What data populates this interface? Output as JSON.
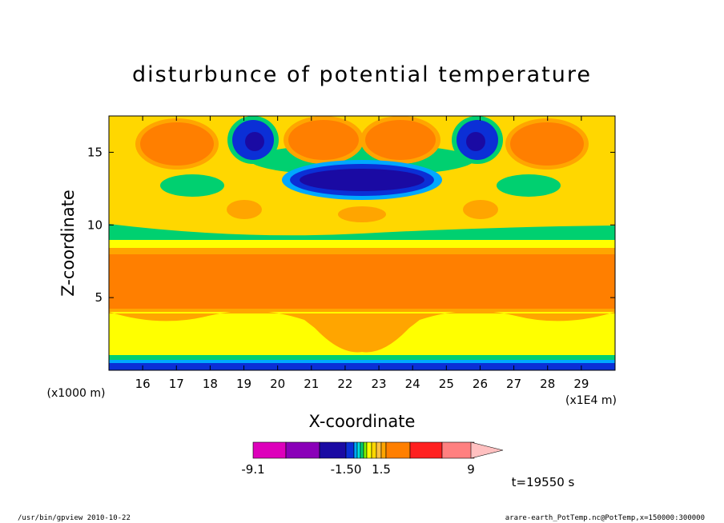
{
  "chart_data": {
    "type": "heatmap",
    "title": "disturbunce of potential temperature",
    "xlabel": "X-coordinate",
    "ylabel": "Z-coordinate",
    "x_unit": "(x1E4 m)",
    "y_unit": "(x1000 m)",
    "xlim": [
      15.0,
      30.0
    ],
    "ylim": [
      0.0,
      17.5
    ],
    "x_ticks": [
      "16",
      "17",
      "18",
      "19",
      "20",
      "21",
      "22",
      "23",
      "24",
      "25",
      "26",
      "27",
      "28",
      "29"
    ],
    "y_ticks": [
      "5",
      "10",
      "15"
    ],
    "colorbar": {
      "levels": [
        -9.1,
        -6.0,
        -3.0,
        -1.5,
        -1.2,
        -0.9,
        -0.6,
        -0.3,
        0.3,
        0.6,
        0.9,
        1.2,
        1.5,
        4.0,
        7.0,
        9.0
      ],
      "colors": [
        "#dd00bb",
        "#8a00b8",
        "#1a0aa3",
        "#0b2fd6",
        "#00a8ff",
        "#00e0e0",
        "#00d070",
        "#7af200",
        "#ffff00",
        "#ffd700",
        "#ffc040",
        "#ffa500",
        "#ff7f00",
        "#ff2020",
        "#ff8080",
        "#ffc0c0"
      ],
      "tick_labels": [
        "-9.1",
        "-1.50",
        "1.5",
        "9"
      ]
    },
    "time_label": "t=19550 s"
  },
  "footer": {
    "left": "/usr/bin/gpview   2010-10-22",
    "right": "arare-earth_PotTemp.nc@PotTemp,x=150000:300000"
  }
}
